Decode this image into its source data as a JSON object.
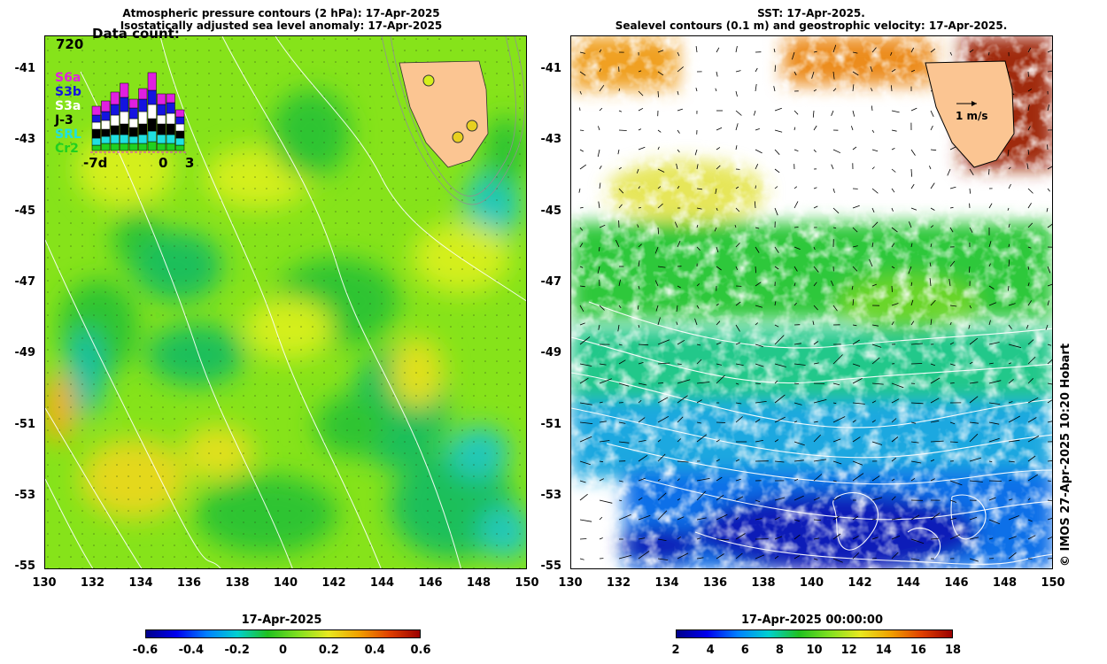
{
  "left_panel": {
    "title_line1": "Atmospheric pressure contours (2 hPa): 17-Apr-2025",
    "title_line2": "Isostatically adjusted sea level anomaly: 17-Apr-2025",
    "legend": {
      "title": "Data count:",
      "max_count": "720",
      "items": [
        {
          "label": "S6a",
          "color": "#e020e0"
        },
        {
          "label": "S3b",
          "color": "#1414e0"
        },
        {
          "label": "S3a",
          "color": "#ffffff"
        },
        {
          "label": "J-3",
          "color": "#000000"
        },
        {
          "label": "SRL",
          "color": "#20e0e0"
        },
        {
          "label": "Cr2",
          "color": "#20d020"
        }
      ],
      "x_ticks": [
        "-7d",
        "0",
        "3"
      ]
    },
    "colorbar": {
      "title": "17-Apr-2025",
      "ticks": [
        "-0.6",
        "-0.4",
        "-0.2",
        "0",
        "0.2",
        "0.4",
        "0.6"
      ]
    }
  },
  "right_panel": {
    "title_line1": "SST: 17-Apr-2025.",
    "title_line2": "Sealevel contours (0.1 m) and geostrophic velocity: 17-Apr-2025.",
    "velocity_scale_label": "1 m/s",
    "colorbar": {
      "title": "17-Apr-2025 00:00:00",
      "ticks": [
        "2",
        "4",
        "6",
        "8",
        "10",
        "12",
        "14",
        "16",
        "18"
      ]
    }
  },
  "axes": {
    "y_ticks": [
      "-41",
      "-43",
      "-45",
      "-47",
      "-49",
      "-51",
      "-53",
      "-55"
    ],
    "x_ticks": [
      "130",
      "132",
      "134",
      "136",
      "138",
      "140",
      "142",
      "144",
      "146",
      "148",
      "150"
    ]
  },
  "copyright": "© IMOS 27-Apr-2025 10:20 Hobart",
  "colors": {
    "land": "#fbc592",
    "sla_base": "#86e31a",
    "sst_background": "#ffffff"
  }
}
